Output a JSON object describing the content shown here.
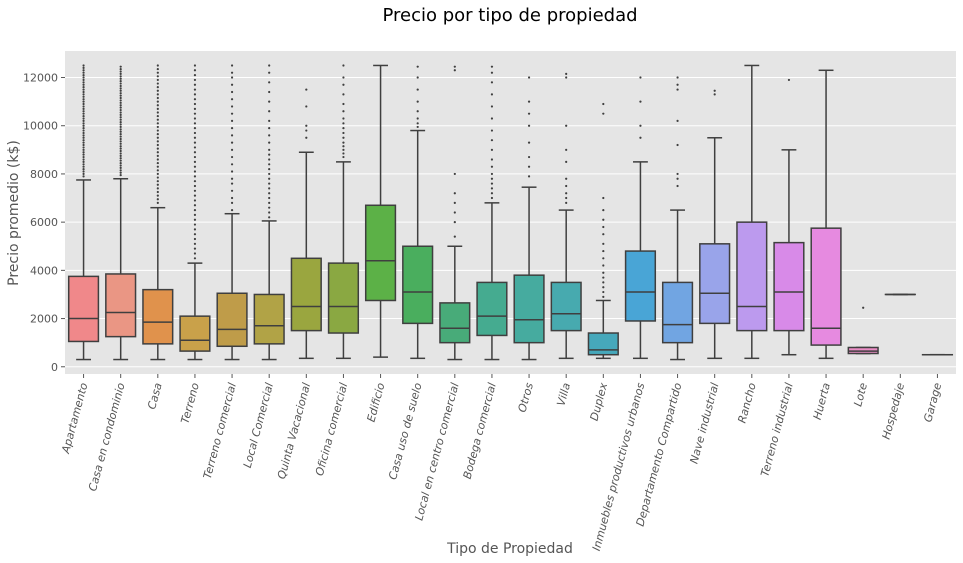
{
  "chart_data": {
    "type": "box",
    "title": "Precio por tipo de propiedad",
    "xlabel": "Tipo de Propiedad",
    "ylabel": "Precio promedio (k$)",
    "ylim": [
      -300,
      13100
    ],
    "yticks": [
      0,
      2000,
      4000,
      6000,
      8000,
      10000,
      12000
    ],
    "ytick_labels": [
      "0",
      "2000",
      "4000",
      "6000",
      "8000",
      "10000",
      "12000"
    ],
    "grid": true,
    "legend": "none",
    "categories": [
      {
        "name": "Apartamento",
        "color": "#f0888a",
        "q1": 1050,
        "median": 2000,
        "q3": 3750,
        "wl": 300,
        "wh": 7750,
        "outliers": [
          7900,
          8000,
          8100,
          8200,
          8300,
          8400,
          8500,
          8600,
          8700,
          8800,
          8900,
          9000,
          9100,
          9200,
          9300,
          9400,
          9500,
          9600,
          9700,
          9800,
          9900,
          10000,
          10100,
          10200,
          10300,
          10400,
          10500,
          10600,
          10700,
          10800,
          10900,
          11000,
          11100,
          11200,
          11300,
          11400,
          11500,
          11600,
          11700,
          11800,
          11900,
          12000,
          12100,
          12200,
          12300,
          12400,
          12500
        ]
      },
      {
        "name": "Casa en condominio",
        "color": "#ea9684",
        "q1": 1250,
        "median": 2250,
        "q3": 3850,
        "wl": 300,
        "wh": 7800,
        "outliers": [
          7950,
          8050,
          8150,
          8250,
          8350,
          8450,
          8550,
          8650,
          8750,
          8850,
          8950,
          9050,
          9150,
          9250,
          9350,
          9450,
          9550,
          9650,
          9750,
          9850,
          9950,
          10050,
          10150,
          10250,
          10350,
          10450,
          10550,
          10650,
          10750,
          10850,
          10950,
          11050,
          11150,
          11250,
          11350,
          11450,
          11550,
          11650,
          11750,
          11850,
          11950,
          12050,
          12150,
          12250,
          12350,
          12450
        ]
      },
      {
        "name": "Casa",
        "color": "#e0924c",
        "q1": 950,
        "median": 1850,
        "q3": 3200,
        "wl": 300,
        "wh": 6600,
        "outliers": [
          6800,
          6950,
          7100,
          7250,
          7400,
          7550,
          7700,
          7850,
          8000,
          8150,
          8300,
          8450,
          8600,
          8750,
          8900,
          9050,
          9200,
          9350,
          9500,
          9650,
          9800,
          9950,
          10100,
          10250,
          10400,
          10550,
          10700,
          10850,
          11000,
          11150,
          11300,
          11450,
          11600,
          11750,
          11900,
          12050,
          12200,
          12350,
          12500
        ]
      },
      {
        "name": "Terreno",
        "color": "#c9a14a",
        "q1": 650,
        "median": 1100,
        "q3": 2100,
        "wl": 300,
        "wh": 4300,
        "outliers": [
          4500,
          4700,
          4900,
          5100,
          5300,
          5500,
          5700,
          5900,
          6100,
          6300,
          6500,
          6700,
          6900,
          7100,
          7300,
          7500,
          7700,
          7900,
          8100,
          8300,
          8500,
          8700,
          8900,
          9100,
          9300,
          9500,
          9700,
          9900,
          10100,
          10300,
          10500,
          10700,
          10900,
          11100,
          11300,
          11500,
          11700,
          11900,
          12100,
          12300,
          12500
        ]
      },
      {
        "name": "Terreno comercial",
        "color": "#bf9c49",
        "q1": 850,
        "median": 1550,
        "q3": 3050,
        "wl": 300,
        "wh": 6350,
        "outliers": [
          6500,
          6800,
          7000,
          7300,
          7600,
          7800,
          8100,
          8400,
          8700,
          9000,
          9300,
          9600,
          9900,
          10200,
          10500,
          10800,
          11100,
          11400,
          11700,
          12000,
          12200,
          12500
        ]
      },
      {
        "name": "Local Comercial",
        "color": "#b1a346",
        "q1": 950,
        "median": 1700,
        "q3": 3000,
        "wl": 300,
        "wh": 6050,
        "outliers": [
          6200,
          6400,
          6600,
          6800,
          7000,
          7200,
          7400,
          7600,
          7800,
          8000,
          8200,
          8400,
          8600,
          8800,
          9000,
          9300,
          9600,
          9900,
          10200,
          10600,
          11000,
          11400,
          11800,
          12200,
          12500
        ]
      },
      {
        "name": "Quinta Vacacional",
        "color": "#9aa63f",
        "q1": 1500,
        "median": 2500,
        "q3": 4500,
        "wl": 350,
        "wh": 8900,
        "outliers": [
          9500,
          9800,
          10000,
          10800,
          11500
        ]
      },
      {
        "name": "Oficina comercial",
        "color": "#8aa842",
        "q1": 1400,
        "median": 2500,
        "q3": 4300,
        "wl": 350,
        "wh": 8500,
        "outliers": [
          8700,
          8850,
          9000,
          9150,
          9300,
          9500,
          9700,
          9900,
          10100,
          10300,
          10600,
          10900,
          11300,
          11700,
          12000,
          12500
        ]
      },
      {
        "name": "Edificio",
        "color": "#5cb147",
        "q1": 2750,
        "median": 4400,
        "q3": 6700,
        "wl": 400,
        "wh": 12500,
        "outliers": []
      },
      {
        "name": "Casa uso de suelo",
        "color": "#4aae5e",
        "q1": 1800,
        "median": 3100,
        "q3": 5000,
        "wl": 350,
        "wh": 9800,
        "outliers": [
          9950,
          10100,
          10300,
          10600,
          11000,
          11500,
          12000,
          12450
        ]
      },
      {
        "name": "Local en centro comercial",
        "color": "#48ab79",
        "q1": 1000,
        "median": 1600,
        "q3": 2650,
        "wl": 300,
        "wh": 5000,
        "outliers": [
          5400,
          6000,
          6400,
          6800,
          7200,
          8000,
          12300,
          12450
        ]
      },
      {
        "name": "Bodega comercial",
        "color": "#45ab90",
        "q1": 1300,
        "median": 2100,
        "q3": 3500,
        "wl": 300,
        "wh": 6800,
        "outliers": [
          7000,
          7200,
          7400,
          7600,
          7800,
          8000,
          8300,
          8600,
          9000,
          9400,
          9800,
          10300,
          10800,
          11300,
          11800,
          12200,
          12450
        ]
      },
      {
        "name": "Otros",
        "color": "#46ab9f",
        "q1": 1000,
        "median": 1950,
        "q3": 3800,
        "wl": 300,
        "wh": 7450,
        "outliers": [
          7900,
          8300,
          8700,
          9300,
          10000,
          10500,
          11000,
          12000
        ]
      },
      {
        "name": "Villa",
        "color": "#47aaaf",
        "q1": 1500,
        "median": 2200,
        "q3": 3500,
        "wl": 350,
        "wh": 6500,
        "outliers": [
          6800,
          7000,
          7200,
          7500,
          7800,
          8500,
          9000,
          10000,
          12000,
          12150
        ]
      },
      {
        "name": "Duplex",
        "color": "#46a8bb",
        "q1": 500,
        "median": 700,
        "q3": 1400,
        "wl": 350,
        "wh": 2750,
        "outliers": [
          2900,
          3100,
          3300,
          3500,
          3700,
          3900,
          4200,
          4500,
          4800,
          5100,
          5500,
          5800,
          6100,
          6500,
          7000,
          10500,
          10900
        ]
      },
      {
        "name": "Inmuebles productivos urbanos",
        "color": "#49a5d6",
        "q1": 1900,
        "median": 3100,
        "q3": 4800,
        "wl": 350,
        "wh": 8500,
        "outliers": [
          9500,
          10000,
          11000,
          12000
        ]
      },
      {
        "name": "Departamento Compartido",
        "color": "#71a5e2",
        "q1": 1000,
        "median": 1750,
        "q3": 3500,
        "wl": 300,
        "wh": 6500,
        "outliers": [
          7500,
          7800,
          8000,
          9200,
          10200,
          11500,
          11700,
          12000
        ]
      },
      {
        "name": "Nave industrial",
        "color": "#99a4ea",
        "q1": 1800,
        "median": 3050,
        "q3": 5100,
        "wl": 350,
        "wh": 9500,
        "outliers": [
          11300,
          11450
        ]
      },
      {
        "name": "Rancho",
        "color": "#bc9aee",
        "q1": 1500,
        "median": 2500,
        "q3": 6000,
        "wl": 350,
        "wh": 12500,
        "outliers": []
      },
      {
        "name": "Terreno industrial",
        "color": "#d88ae8",
        "q1": 1500,
        "median": 3100,
        "q3": 5150,
        "wl": 500,
        "wh": 9000,
        "outliers": [
          11900
        ]
      },
      {
        "name": "Huerta",
        "color": "#e68ae0",
        "q1": 900,
        "median": 1600,
        "q3": 5750,
        "wl": 350,
        "wh": 12300,
        "outliers": []
      },
      {
        "name": "Lote",
        "color": "#ea8dc5",
        "q1": 550,
        "median": 650,
        "q3": 800,
        "wl": 550,
        "wh": 800,
        "outliers": [
          2450
        ]
      },
      {
        "name": "Hospedaje",
        "color": "#ed8fb1",
        "q1": 3000,
        "median": 3000,
        "q3": 3000,
        "wl": 3000,
        "wh": 3000,
        "outliers": []
      },
      {
        "name": "Garage",
        "color": "#f08c9e",
        "q1": 500,
        "median": 500,
        "q3": 500,
        "wl": 500,
        "wh": 500,
        "outliers": []
      }
    ]
  }
}
